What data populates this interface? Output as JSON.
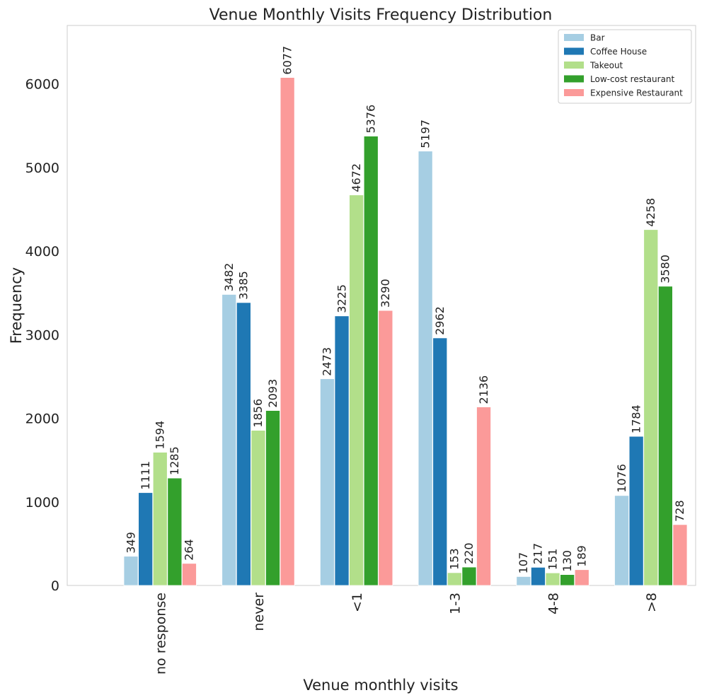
{
  "chart_data": {
    "type": "bar",
    "title": "Venue Monthly Visits Frequency Distribution",
    "xlabel": "Venue monthly visits",
    "ylabel": "Frequency",
    "categories": [
      "no response",
      "never",
      "<1",
      "1-3",
      "4-8",
      ">8"
    ],
    "series": [
      {
        "name": "Bar",
        "color": "#a6cee3",
        "values": [
          349,
          3482,
          2473,
          5197,
          107,
          1076
        ]
      },
      {
        "name": "Coffee House",
        "color": "#1f78b4",
        "values": [
          1111,
          3385,
          3225,
          2962,
          217,
          1784
        ]
      },
      {
        "name": "Takeout",
        "color": "#b2df8a",
        "values": [
          1594,
          1856,
          4672,
          153,
          151,
          4258
        ]
      },
      {
        "name": "Low-cost restaurant",
        "color": "#33a02c",
        "values": [
          1285,
          2093,
          5376,
          220,
          130,
          3580
        ]
      },
      {
        "name": "Expensive Restaurant",
        "color": "#fb9a99",
        "values": [
          264,
          6077,
          3290,
          2136,
          189,
          728
        ]
      }
    ],
    "ylim": [
      0,
      6700
    ],
    "yticks": [
      0,
      1000,
      2000,
      3000,
      4000,
      5000,
      6000
    ],
    "grid": false,
    "legend_position": "top-right"
  }
}
